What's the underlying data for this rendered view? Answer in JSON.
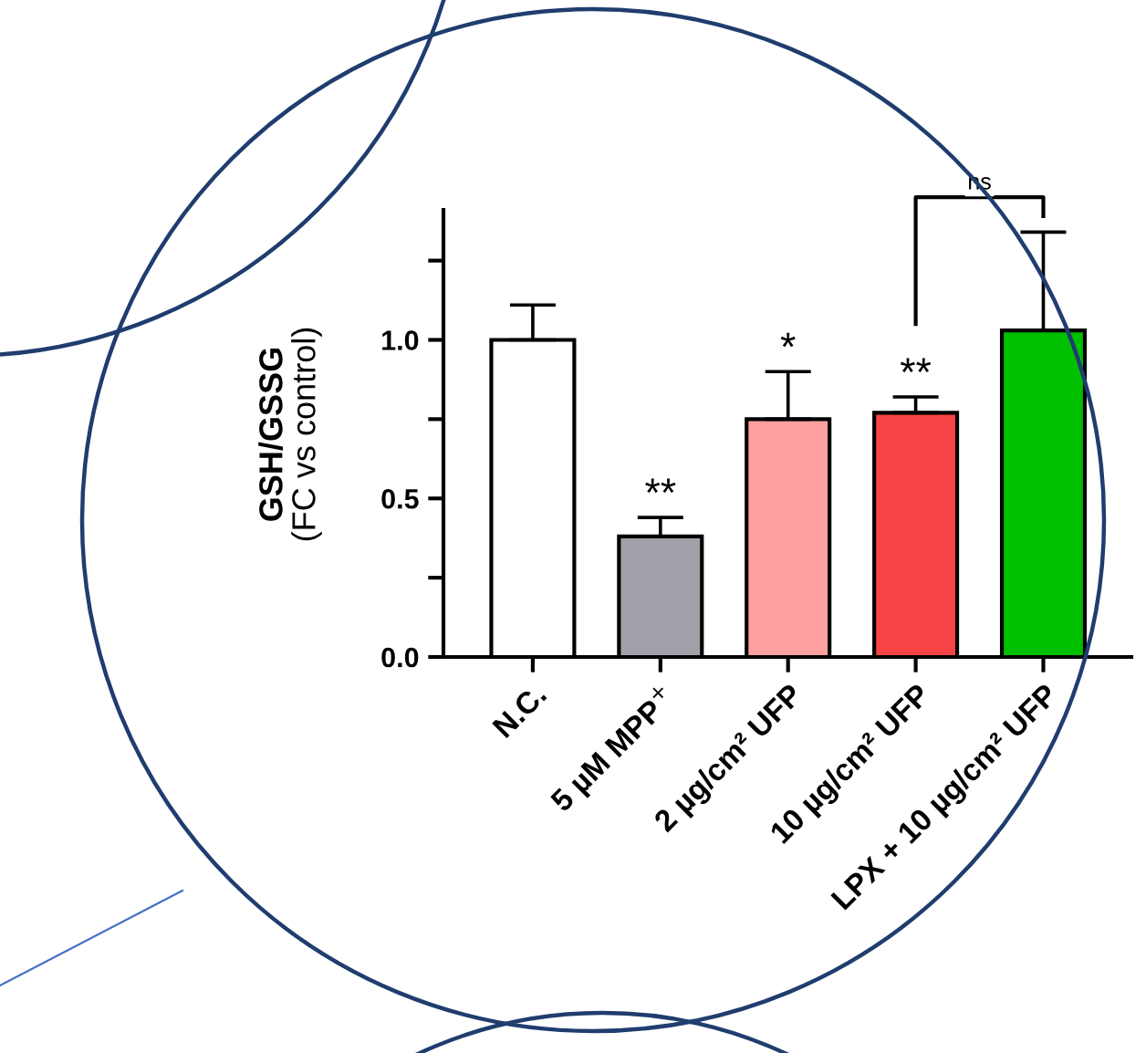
{
  "chart_data": {
    "type": "bar",
    "ylabel": "GSH/GSSG\n(FC vs control)",
    "categories": [
      "N.C.",
      "5 µM MPP$^{+}$",
      "2 µg/cm² UFP",
      "10 µg/cm² UFP",
      "LPX + 10 µg/cm² UFP"
    ],
    "values": [
      1.0,
      0.38,
      0.75,
      0.77,
      1.03
    ],
    "errors": [
      [
        1.0,
        1.11
      ],
      [
        0.38,
        0.44
      ],
      [
        0.75,
        0.9
      ],
      [
        0.77,
        0.82
      ],
      [
        1.03,
        1.34
      ]
    ],
    "colors": [
      "#ffffff",
      "#a0a0a8",
      "#ffa0a0",
      "#f84444",
      "#00c000"
    ],
    "ylim": [
      0,
      1.41
    ],
    "yticks": [
      {
        "value": 0,
        "label": "0.0"
      },
      {
        "value": 0.25,
        "label": null
      },
      {
        "value": 0.5,
        "label": "0.5"
      },
      {
        "value": 0.75,
        "label": null
      },
      {
        "value": 1.0,
        "label": "1.0"
      },
      {
        "value": 1.25,
        "label": null
      }
    ],
    "annotations": [
      "**",
      "*",
      "**",
      "ns"
    ],
    "grid": false,
    "legend": false
  }
}
